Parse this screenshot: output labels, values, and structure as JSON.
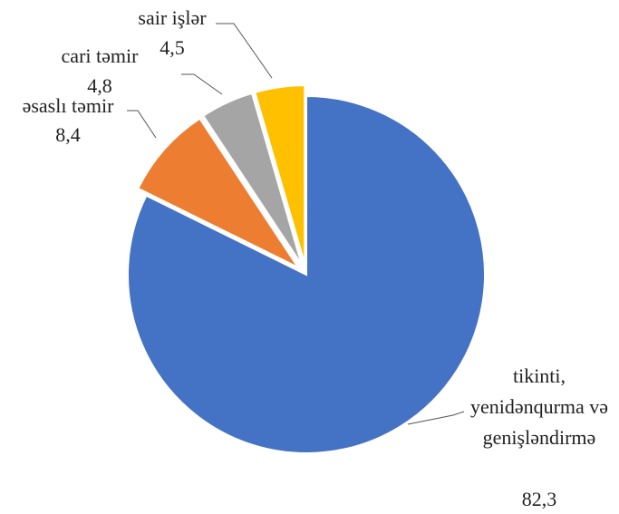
{
  "chart_data": {
    "type": "pie",
    "categories": [
      "tikinti, yenidənqurma və genişləndirmə",
      "əsaslı təmir",
      "cari təmir",
      "sair işlər"
    ],
    "values": [
      82.3,
      8.4,
      4.8,
      4.5
    ],
    "value_labels": [
      "82,3",
      "8,4",
      "4,8",
      "4,5"
    ],
    "colors": [
      "#4472c4",
      "#ed7d31",
      "#a5a5a5",
      "#ffc000"
    ]
  }
}
